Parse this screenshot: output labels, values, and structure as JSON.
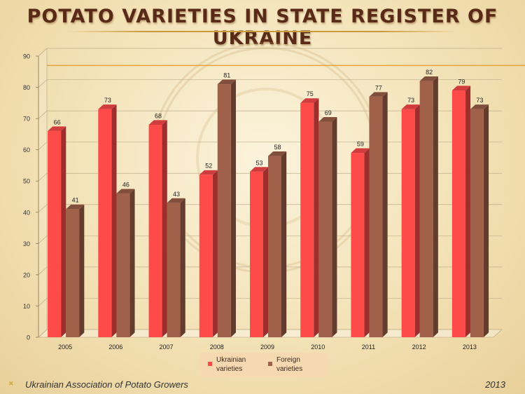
{
  "title": "POTATO VARIETIES IN STATE REGISTER OF UKRAINE",
  "colors": {
    "ukrainian": "#ff4a4a",
    "foreign": "#a0604a",
    "reference_line": "#e8a23a"
  },
  "chart_data": {
    "type": "bar",
    "categories": [
      "2005",
      "2006",
      "2007",
      "2008",
      "2009",
      "2010",
      "2011",
      "2012",
      "2013"
    ],
    "series": [
      {
        "name": "Ukrainian varieties",
        "values": [
          66,
          73,
          68,
          52,
          53,
          75,
          59,
          73,
          79
        ]
      },
      {
        "name": "Foreign varieties",
        "values": [
          41,
          46,
          43,
          81,
          58,
          69,
          77,
          82,
          73
        ]
      }
    ],
    "ylim": [
      0,
      90
    ],
    "y_ticks": [
      "0",
      "10",
      "20",
      "30",
      "40",
      "50",
      "60",
      "70",
      "80",
      "90"
    ],
    "reference_line_value": 87,
    "grid": true,
    "legend_position": "bottom-center",
    "style": "3d-clustered-columns"
  },
  "legend": {
    "ukrainian_label": "Ukrainian\nvarieties",
    "foreign_label": "Foreign\nvarieties"
  },
  "footer": {
    "organization": "Ukrainian Association of Potato Growers",
    "year": "2013"
  }
}
